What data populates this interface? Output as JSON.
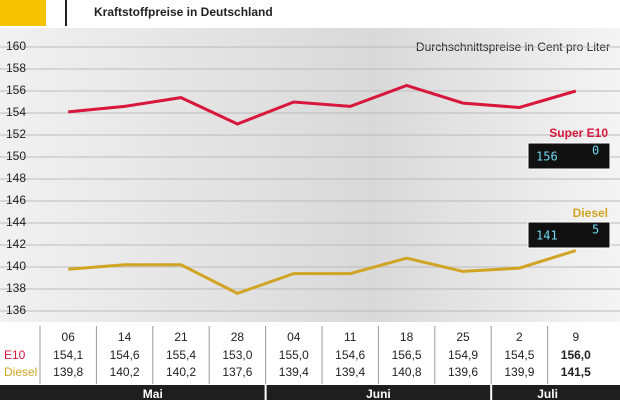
{
  "chart_data": {
    "type": "line",
    "title": "Kraftstoffpreise in Deutschland",
    "subtitle": "Durchschnittspreise in Cent pro Liter",
    "categories": [
      "06",
      "14",
      "21",
      "28",
      "04",
      "11",
      "18",
      "25",
      "2",
      "9"
    ],
    "months": [
      "Mai",
      "Juni",
      "Juli"
    ],
    "row_labels": [
      "E10",
      "Diesel"
    ],
    "series": [
      {
        "name": "Super E10",
        "color": "#d8173c",
        "values": [
          154.1,
          154.6,
          155.4,
          153.0,
          155.0,
          154.6,
          156.5,
          154.9,
          154.5,
          156.0
        ],
        "value_labels": [
          "154,1",
          "154,6",
          "155,4",
          "153,0",
          "155,0",
          "154,6",
          "156,5",
          "154,9",
          "154,5",
          "156,0"
        ],
        "display": {
          "main": "156",
          "sup": "0"
        }
      },
      {
        "name": "Diesel",
        "color": "#d1a424",
        "values": [
          139.8,
          140.2,
          140.2,
          137.6,
          139.4,
          139.4,
          140.8,
          139.6,
          139.9,
          141.5
        ],
        "value_labels": [
          "139,8",
          "140,2",
          "140,2",
          "137,6",
          "139,4",
          "139,4",
          "140,8",
          "139,6",
          "139,9",
          "141,5"
        ],
        "display": {
          "main": "141",
          "sup": "5"
        }
      }
    ],
    "ylim": [
      135,
      161
    ],
    "yticks": [
      136,
      138,
      140,
      142,
      144,
      146,
      148,
      150,
      152,
      154,
      156,
      158,
      160
    ],
    "grid": true
  }
}
